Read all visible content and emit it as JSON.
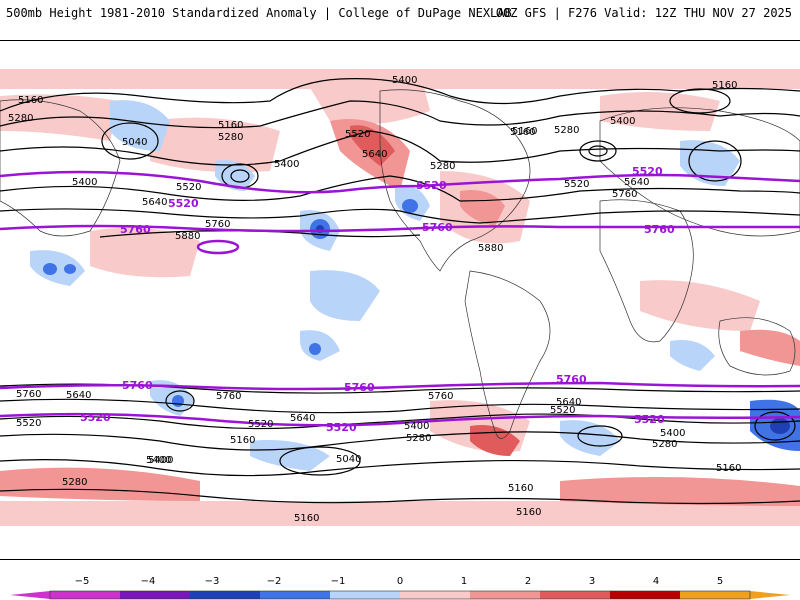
{
  "header": {
    "left_title": "500mb Height 1981-2010 Standardized Anomaly | College of DuPage NEXLAB",
    "right_title": "00Z GFS | F276 Valid: 12Z THU NOV 27 2025"
  },
  "colors": {
    "neg5": "#cc33cc",
    "neg4": "#7a16b8",
    "neg3": "#1f3fb5",
    "neg2": "#3f73e6",
    "neg1": "#b8d4f8",
    "zero": "#ffffff",
    "pos1": "#f9caca",
    "pos2": "#f29595",
    "pos3": "#e05c5c",
    "pos4": "#b80000",
    "pos5": "#f0a020",
    "contour": "#000000",
    "highlight": "#9b14d6"
  },
  "contour_labels": {
    "nh": [
      "5160",
      "5280",
      "5040",
      "5160",
      "5280",
      "5400",
      "5520",
      "5640",
      "5400",
      "5760",
      "5880",
      "5520",
      "5640",
      "5280",
      "5160",
      "5400",
      "5280",
      "5160",
      "5520",
      "5640",
      "5760",
      "5880",
      "5160",
      "5400"
    ],
    "sh": [
      "5760",
      "5640",
      "5520",
      "5760",
      "5640",
      "5520",
      "5400",
      "5160",
      "5040",
      "5280",
      "5160",
      "5400",
      "5760",
      "5640",
      "5520",
      "5400",
      "5280",
      "5160",
      "5160",
      "5160",
      "5400",
      "5280"
    ]
  },
  "highlight_labels": {
    "h5760": "5760",
    "h5520": "5520"
  },
  "colorbar": {
    "ticks": [
      "−5",
      "−4",
      "−3",
      "−2",
      "−1",
      "0",
      "1",
      "2",
      "3",
      "4",
      "5"
    ]
  }
}
